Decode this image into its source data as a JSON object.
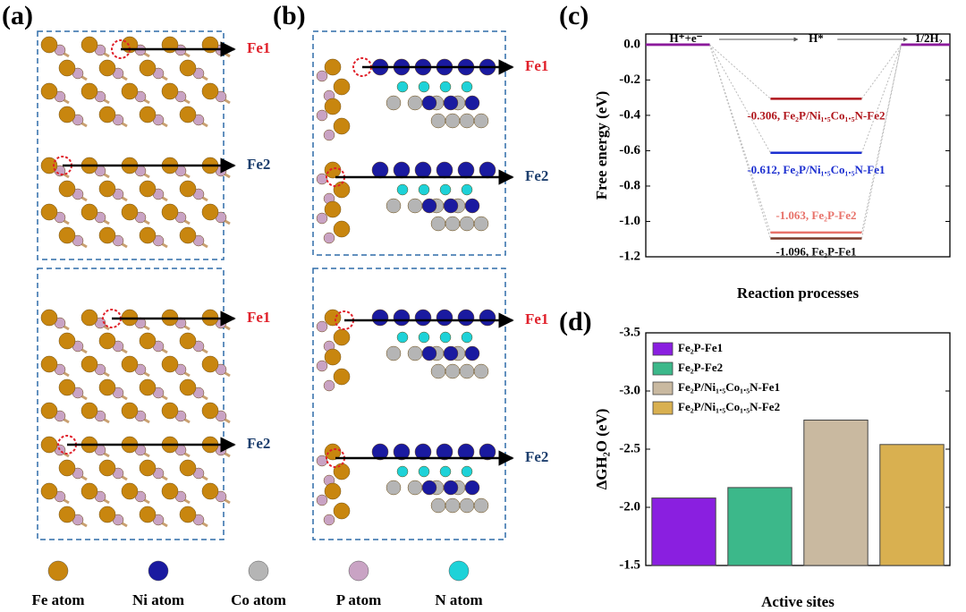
{
  "structures": [
    {
      "panel": "(a)",
      "sites": [
        "Fe1",
        "Fe2",
        "Fe1",
        "Fe2"
      ]
    },
    {
      "panel": "(b)",
      "sites": [
        "Fe1",
        "Fe2",
        "Fe1",
        "Fe2"
      ]
    }
  ],
  "site_colors": {
    "Fe1": "#e0202a",
    "Fe2": "#1d3f6e"
  },
  "atom_legend": [
    {
      "label": "Fe atom",
      "color": "#c8860f"
    },
    {
      "label": "Ni atom",
      "color": "#1a1aa0"
    },
    {
      "label": "Co atom",
      "color": "#b5b5b5"
    },
    {
      "label": "P atom",
      "color": "#c9a3c4"
    },
    {
      "label": "N atom",
      "color": "#1ed2d8"
    }
  ],
  "chart_data": [
    {
      "type": "energy",
      "panel": "(c)",
      "categories": [
        "H⁺+e⁻",
        "H*",
        "1/2H₂"
      ],
      "level_color": "#8b1a9b",
      "series": [
        {
          "name": "Fe₂P-Fe1",
          "color": "#7a3a2a",
          "label_color": "#111111",
          "values": [
            0,
            -1.096,
            0
          ],
          "label": "-1.096, Fe₂P-Fe1"
        },
        {
          "name": "Fe₂P-Fe2",
          "color": "#e8726a",
          "label_color": "#e8726a",
          "values": [
            0,
            -1.063,
            0
          ],
          "label": "-1.063, Fe₂P-Fe2"
        },
        {
          "name": "Fe₂P/Ni₁.₅Co₁.₅N-Fe1",
          "color": "#1c2fd0",
          "label_color": "#1c2fd0",
          "values": [
            0,
            -0.612,
            0
          ],
          "label": "-0.612, Fe₂P/Ni₁.₅Co₁.₅N-Fe1"
        },
        {
          "name": "Fe₂P/Ni₁.₅Co₁.₅N-Fe2",
          "color": "#b0161c",
          "label_color": "#b0161c",
          "values": [
            0,
            -0.306,
            0
          ],
          "label": "-0.306, Fe₂P/Ni₁.₅Co₁.₅N-Fe2"
        }
      ],
      "ylabel": "Free energy (eV)",
      "xlabel": "Reaction processes",
      "ylim": [
        -1.2,
        0.06
      ],
      "yticks": [
        {
          "value": 0,
          "label": "0.0"
        },
        -0.2,
        -0.4,
        -0.6,
        -0.8,
        {
          "value": -1,
          "label": "-1.0"
        },
        -1.2
      ]
    },
    {
      "type": "bar",
      "panel": "(d)",
      "series": [
        {
          "name": "Fe₂P-Fe1",
          "color": "#8a1fe0",
          "values": [
            -2.08
          ]
        },
        {
          "name": "Fe₂P-Fe2",
          "color": "#3cb88a",
          "values": [
            -2.17
          ]
        },
        {
          "name": "Fe₂P/Ni₁.₅Co₁.₅N-Fe1",
          "color": "#c9b9a0",
          "values": [
            -2.75
          ]
        },
        {
          "name": "Fe₂P/Ni₁.₅Co₁.₅N-Fe2",
          "color": "#d9b050",
          "values": [
            -2.54
          ]
        }
      ],
      "ylabel": "ΔGH₂O (eV)",
      "xlabel": "Active sites",
      "ylim": [
        -1.5,
        -3.5
      ],
      "yticks": [
        -1.5,
        {
          "value": -2,
          "label": "-2.0"
        },
        -2.5,
        {
          "value": -3,
          "label": "-3.0"
        },
        -3.5
      ],
      "legend": "upper-left"
    }
  ]
}
